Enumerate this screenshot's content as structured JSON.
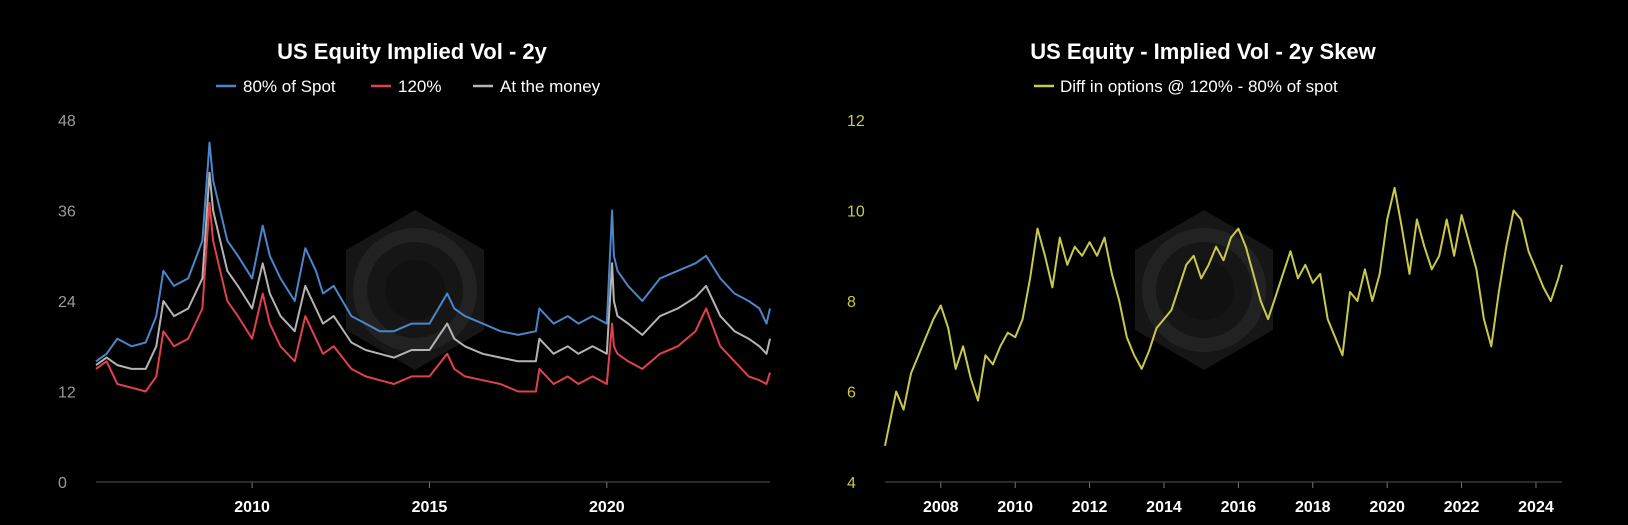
{
  "colors": {
    "background": "#000000",
    "series_80": "#4a86c8",
    "series_120": "#e0414d",
    "series_atm": "#b4b4b4",
    "skew": "#c9c94a",
    "axis": "#555555",
    "watermark": "#1c1c1c"
  },
  "chart_data": [
    {
      "type": "line",
      "title": "US Equity Implied Vol - 2y",
      "ylim": [
        0,
        48
      ],
      "yticks": [
        "0",
        "12",
        "24",
        "36",
        "48"
      ],
      "xlim": [
        2005.6,
        2024.6
      ],
      "xticks": [
        "2010",
        "2015",
        "2020"
      ],
      "xtick_values": [
        2010,
        2015,
        2020
      ],
      "legend": "top-center",
      "series": [
        {
          "name": "80% of Spot",
          "color": "#4a86c8",
          "x": [
            2005.6,
            2005.9,
            2006.2,
            2006.6,
            2007.0,
            2007.3,
            2007.5,
            2007.8,
            2008.2,
            2008.6,
            2008.8,
            2008.9,
            2009.1,
            2009.3,
            2009.6,
            2010.0,
            2010.3,
            2010.5,
            2010.8,
            2011.2,
            2011.5,
            2011.8,
            2012.0,
            2012.3,
            2012.8,
            2013.2,
            2013.6,
            2014.0,
            2014.5,
            2015.0,
            2015.5,
            2015.7,
            2016.0,
            2016.5,
            2017.0,
            2017.5,
            2018.0,
            2018.1,
            2018.5,
            2018.9,
            2019.2,
            2019.6,
            2020.0,
            2020.15,
            2020.2,
            2020.3,
            2020.6,
            2021.0,
            2021.5,
            2022.0,
            2022.5,
            2022.8,
            2023.2,
            2023.6,
            2024.0,
            2024.3,
            2024.5,
            2024.6
          ],
          "values": [
            16,
            17,
            19,
            18,
            18.5,
            22,
            28,
            26,
            27,
            32,
            45,
            40,
            36,
            32,
            30,
            27,
            34,
            30,
            27,
            24,
            31,
            28,
            25,
            26,
            22,
            21,
            20,
            20,
            21,
            21,
            25,
            23,
            22,
            21,
            20,
            19.5,
            20,
            23,
            21,
            22,
            21,
            22,
            21,
            36,
            30,
            28,
            26,
            24,
            27,
            28,
            29,
            30,
            27,
            25,
            24,
            23,
            21,
            23
          ]
        },
        {
          "name": "120%",
          "color": "#e0414d",
          "x": [
            2005.6,
            2005.9,
            2006.2,
            2006.6,
            2007.0,
            2007.3,
            2007.5,
            2007.8,
            2008.2,
            2008.6,
            2008.8,
            2008.9,
            2009.1,
            2009.3,
            2009.6,
            2010.0,
            2010.3,
            2010.5,
            2010.8,
            2011.2,
            2011.5,
            2011.8,
            2012.0,
            2012.3,
            2012.8,
            2013.2,
            2013.6,
            2014.0,
            2014.5,
            2015.0,
            2015.5,
            2015.7,
            2016.0,
            2016.5,
            2017.0,
            2017.5,
            2018.0,
            2018.1,
            2018.5,
            2018.9,
            2019.2,
            2019.6,
            2020.0,
            2020.15,
            2020.2,
            2020.3,
            2020.6,
            2021.0,
            2021.5,
            2022.0,
            2022.5,
            2022.8,
            2023.2,
            2023.6,
            2024.0,
            2024.3,
            2024.5,
            2024.6
          ],
          "values": [
            15,
            16,
            13,
            12.5,
            12,
            14,
            20,
            18,
            19,
            23,
            37,
            32,
            28,
            24,
            22,
            19,
            25,
            21,
            18,
            16,
            22,
            19,
            17,
            18,
            15,
            14,
            13.5,
            13,
            14,
            14,
            17,
            15,
            14,
            13.5,
            13,
            12,
            12,
            15,
            13,
            14,
            13,
            14,
            13,
            21,
            18,
            17,
            16,
            15,
            17,
            18,
            20,
            23,
            18,
            16,
            14,
            13.5,
            13,
            14.5
          ]
        },
        {
          "name": "At the money",
          "color": "#b4b4b4",
          "x": [
            2005.6,
            2005.9,
            2006.2,
            2006.6,
            2007.0,
            2007.3,
            2007.5,
            2007.8,
            2008.2,
            2008.6,
            2008.8,
            2008.9,
            2009.1,
            2009.3,
            2009.6,
            2010.0,
            2010.3,
            2010.5,
            2010.8,
            2011.2,
            2011.5,
            2011.8,
            2012.0,
            2012.3,
            2012.8,
            2013.2,
            2013.6,
            2014.0,
            2014.5,
            2015.0,
            2015.5,
            2015.7,
            2016.0,
            2016.5,
            2017.0,
            2017.5,
            2018.0,
            2018.1,
            2018.5,
            2018.9,
            2019.2,
            2019.6,
            2020.0,
            2020.15,
            2020.2,
            2020.3,
            2020.6,
            2021.0,
            2021.5,
            2022.0,
            2022.5,
            2022.8,
            2023.2,
            2023.6,
            2024.0,
            2024.3,
            2024.5,
            2024.6
          ],
          "values": [
            15.5,
            16.5,
            15.5,
            15,
            15,
            18,
            24,
            22,
            23,
            27,
            41,
            36,
            32,
            28,
            26,
            23,
            29,
            25,
            22,
            20,
            26,
            23,
            21,
            22,
            18.5,
            17.5,
            17,
            16.5,
            17.5,
            17.5,
            21,
            19,
            18,
            17,
            16.5,
            16,
            16,
            19,
            17,
            18,
            17,
            18,
            17,
            29,
            24,
            22,
            21,
            19.5,
            22,
            23,
            24.5,
            26,
            22,
            20,
            19,
            18,
            17,
            19
          ]
        }
      ]
    },
    {
      "type": "line",
      "title": "US Equity - Implied Vol - 2y Skew",
      "ylim": [
        4,
        12
      ],
      "yticks": [
        "4",
        "6",
        "8",
        "10",
        "12"
      ],
      "xlim": [
        2006.5,
        2024.7
      ],
      "xticks": [
        "2008",
        "2010",
        "2012",
        "2014",
        "2016",
        "2018",
        "2020",
        "2022",
        "2024"
      ],
      "xtick_values": [
        2008,
        2010,
        2012,
        2014,
        2016,
        2018,
        2020,
        2022,
        2024
      ],
      "legend": "top-center",
      "series": [
        {
          "name": "Diff in options @ 120% - 80% of spot",
          "color": "#c9c94a",
          "x": [
            2006.5,
            2006.6,
            2006.8,
            2007.0,
            2007.2,
            2007.4,
            2007.6,
            2007.8,
            2008.0,
            2008.2,
            2008.4,
            2008.6,
            2008.8,
            2009.0,
            2009.2,
            2009.4,
            2009.6,
            2009.8,
            2010.0,
            2010.2,
            2010.4,
            2010.6,
            2010.8,
            2011.0,
            2011.2,
            2011.4,
            2011.6,
            2011.8,
            2012.0,
            2012.2,
            2012.4,
            2012.6,
            2012.8,
            2013.0,
            2013.2,
            2013.4,
            2013.6,
            2013.8,
            2014.0,
            2014.2,
            2014.4,
            2014.6,
            2014.8,
            2015.0,
            2015.2,
            2015.4,
            2015.6,
            2015.8,
            2016.0,
            2016.2,
            2016.4,
            2016.6,
            2016.8,
            2017.0,
            2017.2,
            2017.4,
            2017.6,
            2017.8,
            2018.0,
            2018.2,
            2018.4,
            2018.6,
            2018.8,
            2019.0,
            2019.2,
            2019.4,
            2019.6,
            2019.8,
            2020.0,
            2020.2,
            2020.4,
            2020.6,
            2020.8,
            2021.0,
            2021.2,
            2021.4,
            2021.6,
            2021.8,
            2022.0,
            2022.2,
            2022.4,
            2022.6,
            2022.8,
            2023.0,
            2023.2,
            2023.4,
            2023.6,
            2023.8,
            2024.0,
            2024.2,
            2024.4,
            2024.6,
            2024.7
          ],
          "values": [
            4.8,
            5.2,
            6.0,
            5.6,
            6.4,
            6.8,
            7.2,
            7.6,
            7.9,
            7.4,
            6.5,
            7.0,
            6.3,
            5.8,
            6.8,
            6.6,
            7.0,
            7.3,
            7.2,
            7.6,
            8.5,
            9.6,
            9.0,
            8.3,
            9.4,
            8.8,
            9.2,
            9.0,
            9.3,
            9.0,
            9.4,
            8.6,
            8.0,
            7.2,
            6.8,
            6.5,
            6.9,
            7.4,
            7.6,
            7.8,
            8.3,
            8.8,
            9.0,
            8.5,
            8.8,
            9.2,
            8.9,
            9.4,
            9.6,
            9.2,
            8.6,
            8.0,
            7.6,
            8.1,
            8.6,
            9.1,
            8.5,
            8.8,
            8.4,
            8.6,
            7.6,
            7.2,
            6.8,
            8.2,
            8.0,
            8.7,
            8.0,
            8.6,
            9.8,
            10.5,
            9.6,
            8.6,
            9.8,
            9.2,
            8.7,
            9.0,
            9.8,
            9.0,
            9.9,
            9.3,
            8.7,
            7.6,
            7.0,
            8.2,
            9.2,
            10.0,
            9.8,
            9.1,
            8.7,
            8.3,
            8.0,
            8.5,
            8.8
          ]
        }
      ]
    }
  ]
}
